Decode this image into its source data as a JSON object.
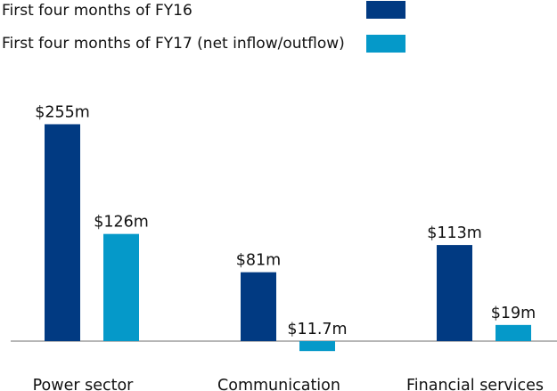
{
  "chart_data": {
    "type": "bar",
    "title": "",
    "xlabel": "",
    "ylabel": "",
    "categories": [
      "Power sector",
      "Communication",
      "Financial services"
    ],
    "series": [
      {
        "name": "First four months of FY16",
        "color": "#013a82",
        "values": [
          255,
          81,
          113
        ],
        "labels": [
          "$255m",
          "$81m",
          "$113m"
        ]
      },
      {
        "name": "First four months of FY17 (net inflow/outflow)",
        "color": "#0599c9",
        "values": [
          126,
          -11.7,
          19
        ],
        "labels": [
          "$126m",
          "$11.7m",
          "$19m"
        ]
      }
    ],
    "ylim": [
      -25,
      280
    ],
    "grid": false,
    "legend_position": "top-left"
  }
}
